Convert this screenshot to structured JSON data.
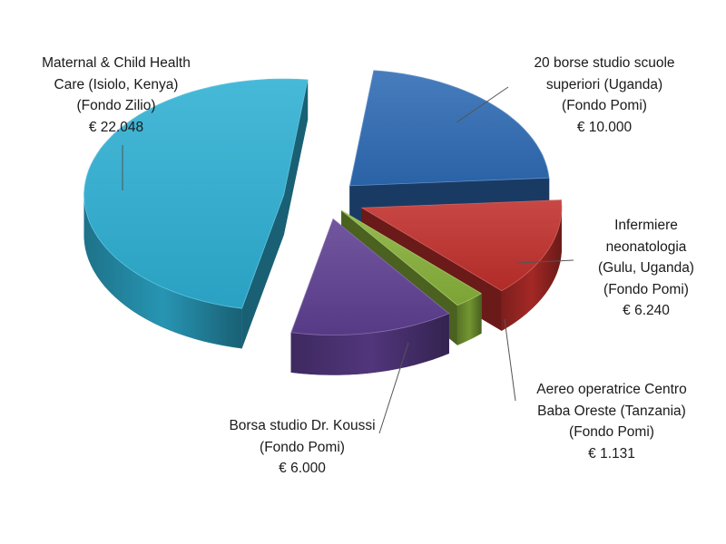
{
  "chart_data": {
    "type": "pie",
    "title": "",
    "slices": [
      {
        "lines": [
          "20 borse studio scuole",
          "superiori (Uganda)",
          "(Fondo Pomi)",
          "€ 10.000"
        ],
        "value": 10000,
        "color": "#2e6bb4"
      },
      {
        "lines": [
          "Infermiere",
          "neonatologia",
          "(Gulu, Uganda)",
          "(Fondo Pomi)",
          "€ 6.240"
        ],
        "value": 6240,
        "color": "#c02f2c"
      },
      {
        "lines": [
          "Aereo operatrice Centro",
          "Baba Oreste (Tanzania)",
          "(Fondo Pomi)",
          "€ 1.131"
        ],
        "value": 1131,
        "color": "#87b13a"
      },
      {
        "lines": [
          "Borsa studio Dr. Koussi",
          "(Fondo Pomi)",
          "€ 6.000"
        ],
        "value": 6000,
        "color": "#5f3f92"
      },
      {
        "lines": [
          "Maternal & Child Health",
          "Care (Isiolo, Kenya)",
          "(Fondo Zilio)",
          "€ 22.048"
        ],
        "value": 22048,
        "color": "#2eafd3"
      }
    ]
  }
}
